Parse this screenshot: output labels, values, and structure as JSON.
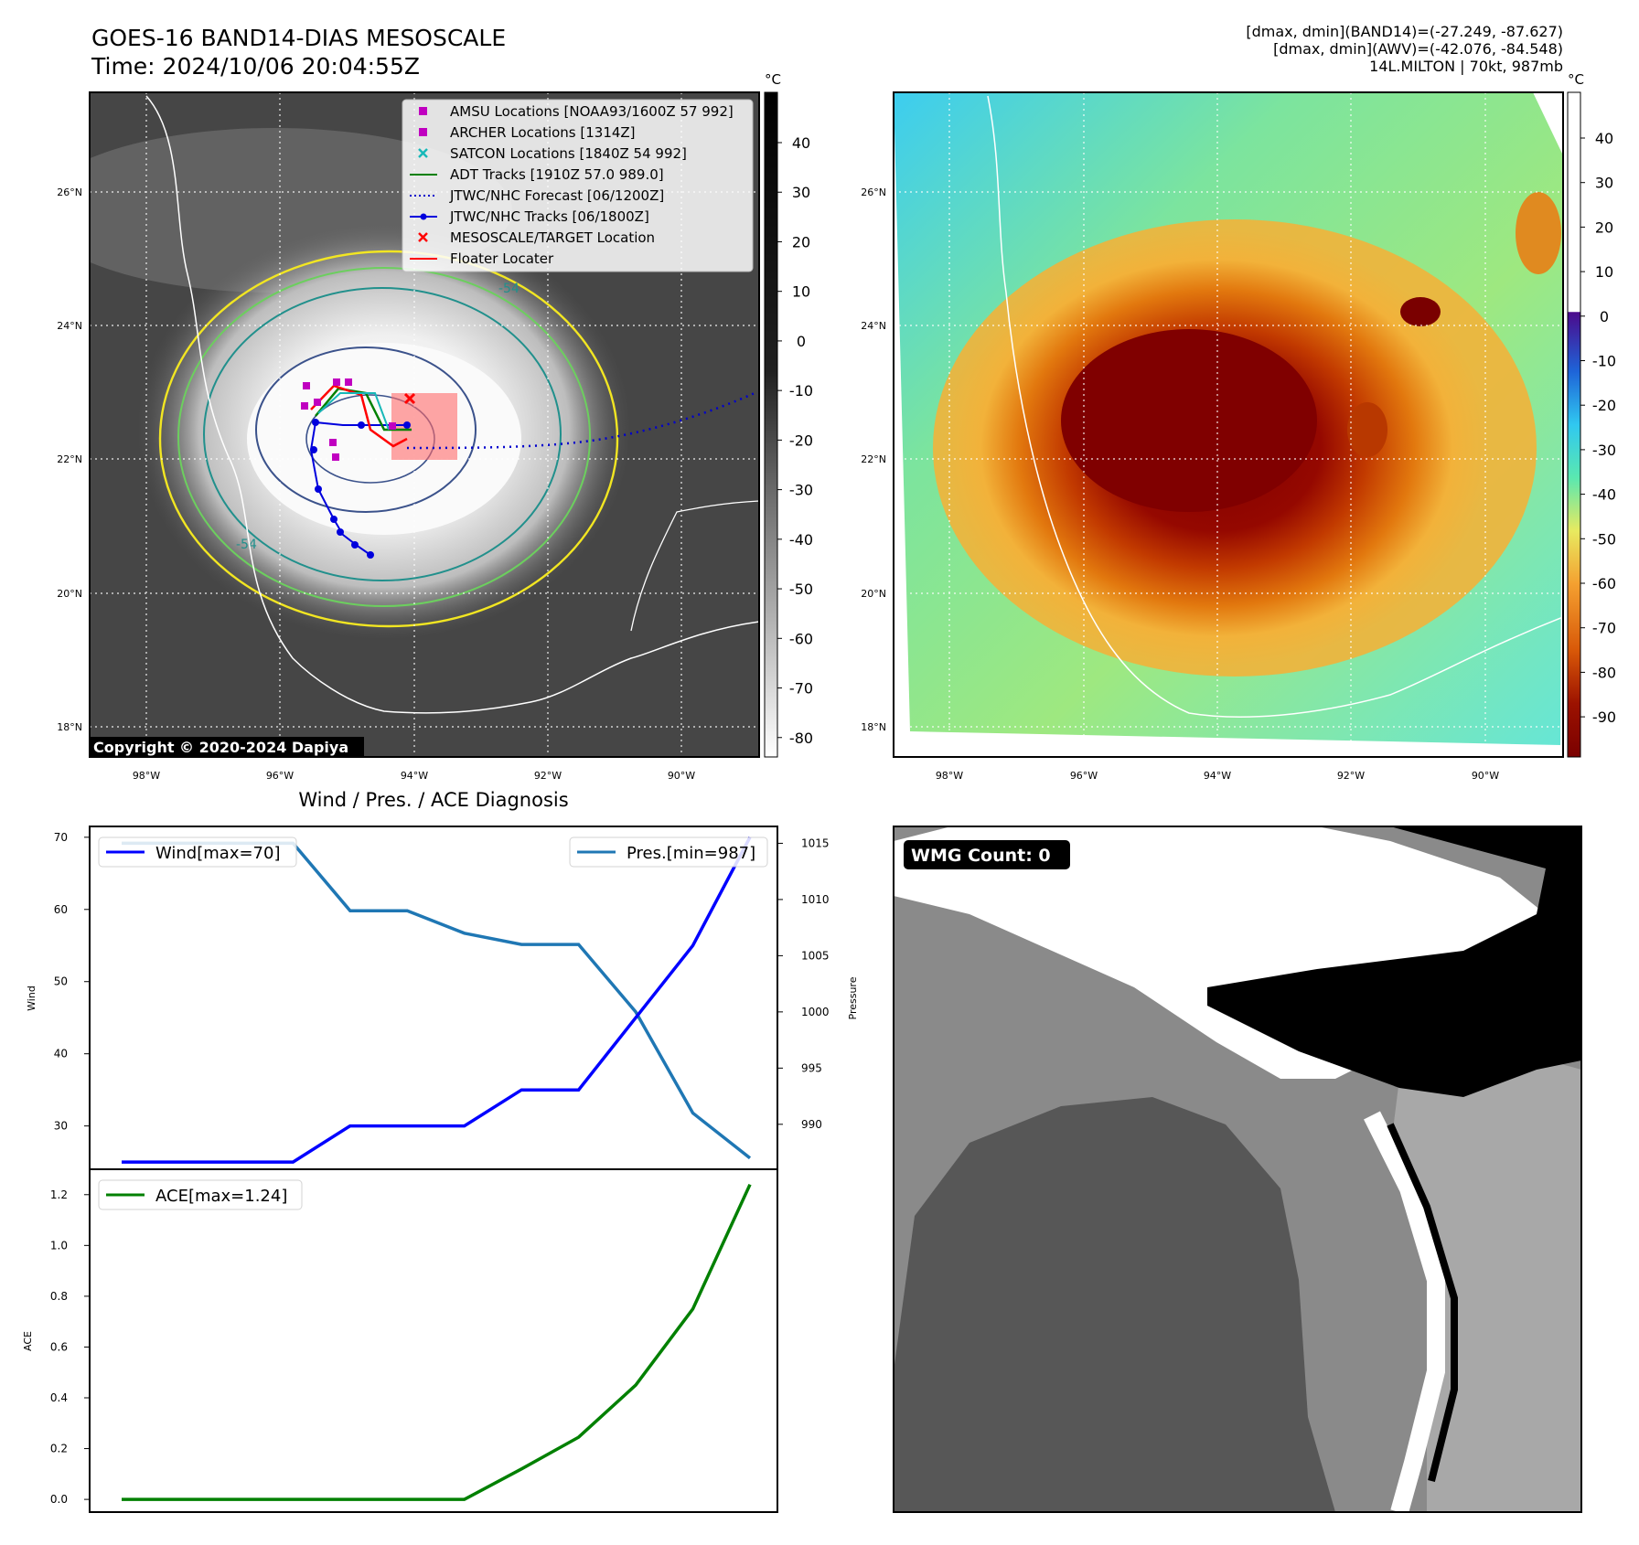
{
  "header": {
    "title": "GOES-16 BAND14-DIAS MESOSCALE",
    "time": "Time: 2024/10/06 20:04:55Z",
    "info_band14": "[dmax, dmin](BAND14)=(-27.249, -87.627)",
    "info_awv": "[dmax, dmin](AWV)=(-42.076, -84.548)",
    "info_storm": "14L.MILTON | 70kt, 987mb"
  },
  "map_ir": {
    "copyright": "Copyright © 2020-2024 Dapiya",
    "colorbar_unit": "°C",
    "colorbar_ticks": [
      40,
      30,
      20,
      10,
      0,
      -10,
      -20,
      -30,
      -40,
      -50,
      -60,
      -70,
      -80
    ],
    "lat_labels": [
      "26°N",
      "24°N",
      "22°N",
      "20°N",
      "18°N"
    ],
    "lon_labels": [
      "98°W",
      "96°W",
      "94°W",
      "92°W",
      "90°W"
    ],
    "contour_labels": [
      "-54",
      "-54"
    ],
    "legend": [
      {
        "label": "AMSU Locations [NOAA93/1600Z 57 992]",
        "color": "#c000c0",
        "marker": "square"
      },
      {
        "label": "ARCHER Locations [1314Z]",
        "color": "#c000c0",
        "marker": "square"
      },
      {
        "label": "SATCON Locations [1840Z 54 992]",
        "color": "#17b8b8",
        "marker": "x"
      },
      {
        "label": "ADT Tracks [1910Z 57.0 989.0]",
        "color": "#008000",
        "marker": "line"
      },
      {
        "label": "JTWC/NHC Forecast [06/1200Z]",
        "color": "#0000cc",
        "marker": "dotted"
      },
      {
        "label": "JTWC/NHC Tracks [06/1800Z]",
        "color": "#0000dd",
        "marker": "dotline"
      },
      {
        "label": "MESOSCALE/TARGET Location",
        "color": "#ff0000",
        "marker": "x"
      },
      {
        "label": "Floater Locater",
        "color": "#ff0000",
        "marker": "line"
      }
    ]
  },
  "map_wv": {
    "colorbar_unit": "°C",
    "colorbar_ticks": [
      40,
      30,
      20,
      10,
      0,
      -10,
      -20,
      -30,
      -40,
      -50,
      -60,
      -70,
      -80,
      -90
    ],
    "lat_labels": [
      "26°N",
      "24°N",
      "22°N",
      "20°N",
      "18°N"
    ],
    "lon_labels": [
      "98°W",
      "96°W",
      "94°W",
      "92°W",
      "90°W"
    ]
  },
  "wmg": {
    "label": "WMG Count: 0"
  },
  "chart_data": [
    {
      "type": "line",
      "title": "Wind / Pres. / ACE Diagnosis",
      "ylabel": "Wind",
      "ylabel_right": "Pressure",
      "ylim": [
        24,
        71.5
      ],
      "ylim_right": [
        986,
        1016.5
      ],
      "yticks": [
        30,
        40,
        50,
        60,
        70
      ],
      "yticks_right": [
        990,
        995,
        1000,
        1005,
        1010,
        1015
      ],
      "series": [
        {
          "name": "Wind[max=70]",
          "color": "#0000ff",
          "axis": "left",
          "values": [
            25,
            25,
            25,
            25,
            30,
            30,
            30,
            35,
            35,
            45,
            55,
            70
          ]
        },
        {
          "name": "Pres.[min=987]",
          "color": "#1f77b4",
          "axis": "right",
          "values": [
            1015,
            1015,
            1015,
            1015,
            1009,
            1009,
            1007,
            1006,
            1006,
            1000,
            991,
            987
          ]
        }
      ]
    },
    {
      "type": "line",
      "ylabel": "ACE",
      "ylim": [
        -0.05,
        1.3
      ],
      "yticks": [
        0.0,
        0.2,
        0.4,
        0.6,
        0.8,
        1.0,
        1.2
      ],
      "series": [
        {
          "name": "ACE[max=1.24]",
          "color": "#008000",
          "values": [
            0,
            0,
            0,
            0,
            0,
            0,
            0,
            0.12,
            0.245,
            0.45,
            0.75,
            1.24
          ]
        }
      ]
    }
  ]
}
